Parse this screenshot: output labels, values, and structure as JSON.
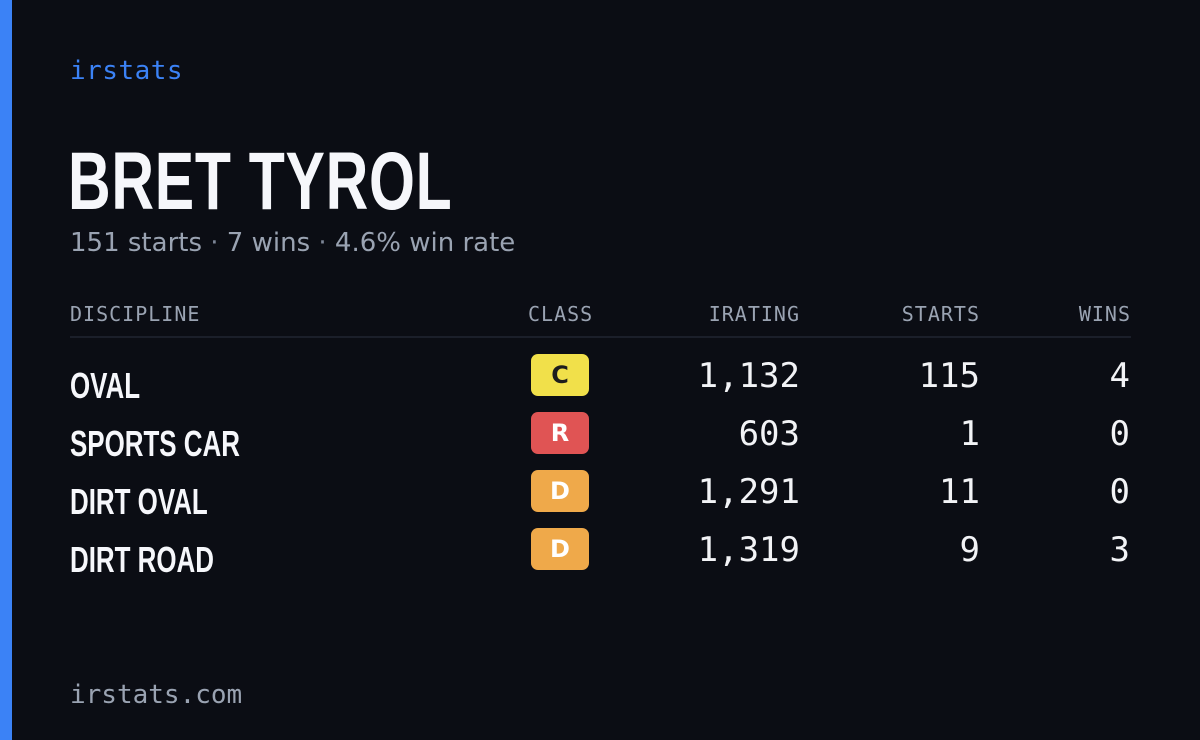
{
  "brand": "irstats",
  "player": {
    "name": "BRET TYROL"
  },
  "summary": {
    "starts": "151 starts",
    "wins": "7 wins",
    "win_rate": "4.6% win rate",
    "separator": "·"
  },
  "table": {
    "headers": {
      "discipline": "DISCIPLINE",
      "class": "CLASS",
      "irating": "IRATING",
      "starts": "STARTS",
      "wins": "WINS"
    },
    "rows": [
      {
        "discipline": "OVAL",
        "class": "C",
        "irating": "1,132",
        "starts": "115",
        "wins": "4"
      },
      {
        "discipline": "SPORTS CAR",
        "class": "R",
        "irating": "603",
        "starts": "1",
        "wins": "0"
      },
      {
        "discipline": "DIRT OVAL",
        "class": "D",
        "irating": "1,291",
        "starts": "11",
        "wins": "0"
      },
      {
        "discipline": "DIRT ROAD",
        "class": "D",
        "irating": "1,319",
        "starts": "9",
        "wins": "3"
      }
    ]
  },
  "class_colors": {
    "C": "#f1e04a",
    "R": "#e05454",
    "D": "#efa94a"
  },
  "colors": {
    "accent": "#3b82f6",
    "background": "#0b0d14"
  },
  "footer": {
    "domain": "irstats.com"
  }
}
